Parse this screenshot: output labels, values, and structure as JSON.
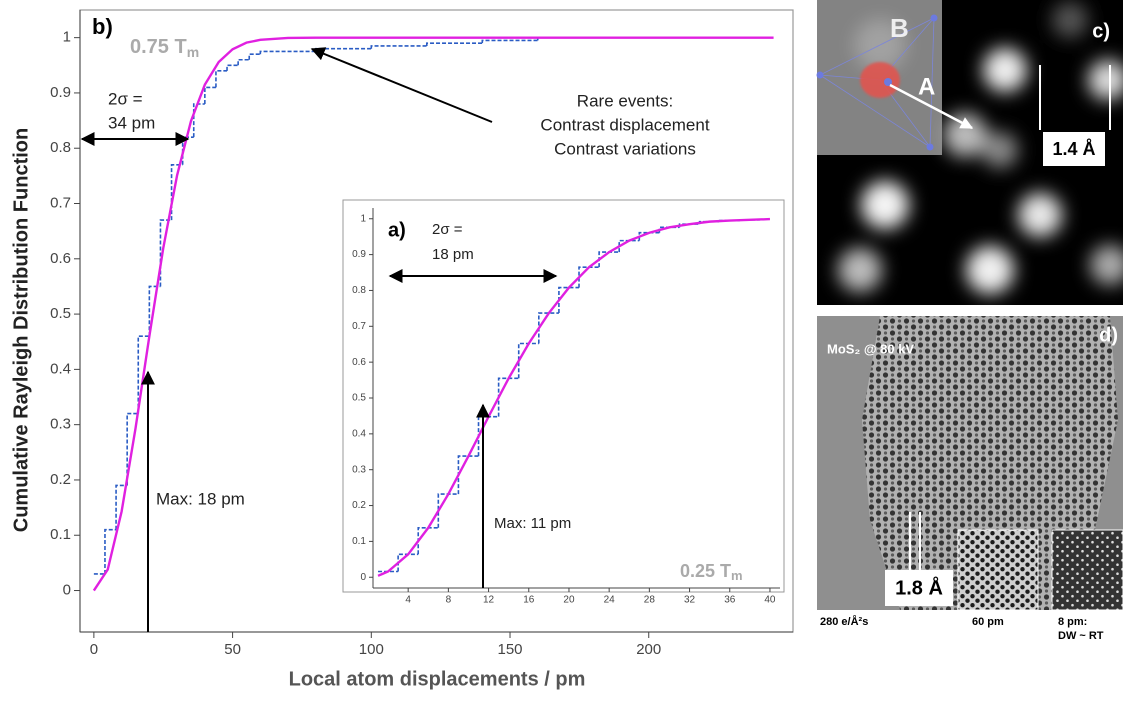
{
  "chart_data": [
    {
      "type": "line",
      "panel_label": "b)",
      "temperature": {
        "text": "0.75 T",
        "subscript": "m"
      },
      "xlabel": "Local atom displacements / pm",
      "ylabel": "Cumulative Rayleigh Distribution Function",
      "xlim": [
        -5,
        252
      ],
      "ylim": [
        -0.075,
        1.05
      ],
      "xticks": [
        0,
        50,
        100,
        150,
        200
      ],
      "yticks": [
        0,
        0.1,
        0.2,
        0.3,
        0.4,
        0.5,
        0.6,
        0.7,
        0.8,
        0.9,
        1
      ],
      "grid": false,
      "series": [
        {
          "color": "#2a5cc4",
          "step": true,
          "dashed": true,
          "x": [
            0,
            4,
            8,
            12,
            16,
            20,
            24,
            28,
            32,
            36,
            40,
            44,
            48,
            52,
            56,
            60,
            80,
            100,
            120,
            140,
            160
          ],
          "values": [
            0.03,
            0.11,
            0.19,
            0.32,
            0.46,
            0.55,
            0.67,
            0.77,
            0.82,
            0.88,
            0.91,
            0.94,
            0.95,
            0.96,
            0.97,
            0.975,
            0.98,
            0.985,
            0.99,
            0.995,
            1.0
          ]
        },
        {
          "color": "#e020e0",
          "step": false,
          "dashed": false,
          "x": [
            0,
            5,
            10,
            15,
            20,
            25,
            30,
            35,
            40,
            45,
            50,
            55,
            60,
            70,
            80,
            245
          ],
          "values": [
            0,
            0.038,
            0.143,
            0.293,
            0.46,
            0.619,
            0.751,
            0.849,
            0.915,
            0.956,
            0.979,
            0.991,
            0.996,
            0.9995,
            1,
            1
          ]
        }
      ],
      "annotations": {
        "sigma": [
          "2σ =",
          "34 pm"
        ],
        "max": "Max: 18 pm",
        "rare": [
          "Rare events:",
          "Contrast displacement",
          "Contrast variations"
        ]
      }
    },
    {
      "type": "line",
      "panel_label": "a)",
      "temperature": {
        "text": "0.25 T",
        "subscript": "m"
      },
      "xlim": [
        0.5,
        41
      ],
      "ylim": [
        -0.03,
        1.03
      ],
      "xticks": [
        4,
        8,
        12,
        16,
        20,
        24,
        28,
        32,
        36,
        40
      ],
      "yticks": [
        0,
        0.1,
        0.2,
        0.3,
        0.4,
        0.5,
        0.6,
        0.7,
        0.8,
        0.9,
        1
      ],
      "grid": false,
      "series": [
        {
          "color": "#2a5cc4",
          "step": true,
          "dashed": true,
          "x": [
            1,
            3,
            5,
            7,
            9,
            11,
            13,
            15,
            17,
            19,
            21,
            23,
            25,
            27,
            29,
            31,
            33,
            35,
            37,
            39
          ],
          "values": [
            0.016,
            0.064,
            0.138,
            0.232,
            0.338,
            0.448,
            0.555,
            0.652,
            0.737,
            0.808,
            0.865,
            0.907,
            0.939,
            0.961,
            0.976,
            0.985,
            0.992,
            0.995,
            0.997,
            0.999
          ]
        },
        {
          "color": "#e020e0",
          "step": false,
          "dashed": false,
          "x": [
            1,
            2,
            4,
            6,
            8,
            10,
            12,
            14,
            16,
            18,
            20,
            22,
            24,
            26,
            28,
            30,
            32,
            34,
            36,
            38,
            40
          ],
          "values": [
            0.004,
            0.016,
            0.064,
            0.138,
            0.232,
            0.338,
            0.448,
            0.555,
            0.652,
            0.737,
            0.808,
            0.865,
            0.907,
            0.939,
            0.961,
            0.976,
            0.985,
            0.992,
            0.995,
            0.997,
            0.999
          ]
        }
      ],
      "annotations": {
        "sigma": [
          "2σ =",
          "18 pm"
        ],
        "max": "Max: 11 pm"
      }
    }
  ],
  "images": {
    "c": {
      "label": "c)",
      "site_b": "B",
      "site_a": "A",
      "scale": "1.4 Å"
    },
    "d": {
      "label": "d)",
      "title": "MoS₂ @ 80 kV",
      "scale": "1.8 Å",
      "captions": [
        "280 e/Å²s",
        "60 pm",
        "8 pm:",
        "DW ~ RT"
      ]
    }
  }
}
